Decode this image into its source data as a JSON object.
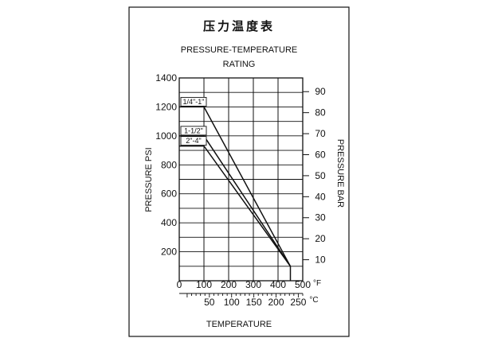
{
  "chart_data": {
    "type": "line",
    "title_cn": "压力温度表",
    "title_line1": "PRESSURE-TEMPERATURE",
    "title_line2": "RATING",
    "ylabel_left": "PRESSURE PSI",
    "ylabel_right": "PRESSURE BAR",
    "xlabel": "TEMPERATURE",
    "xlim": [
      0,
      500
    ],
    "ylim": [
      0,
      1400
    ],
    "y_ticks_left": [
      200,
      400,
      600,
      800,
      1000,
      1200,
      1400
    ],
    "y_ticks_right": [
      10,
      20,
      30,
      40,
      50,
      60,
      70,
      80,
      90
    ],
    "x_ticks_f": [
      0,
      100,
      200,
      300,
      400,
      500
    ],
    "x_unit_f": "°F",
    "x_ticks_c": [
      50,
      100,
      150,
      200,
      250
    ],
    "x_unit_c": "°C",
    "grid": true,
    "series": [
      {
        "name": "1/4\"-1\"",
        "x": [
          0,
          100,
          450
        ],
        "y": [
          1200,
          1200,
          100
        ]
      },
      {
        "name": "1-1/2\"",
        "x": [
          0,
          100,
          450
        ],
        "y": [
          1000,
          1000,
          100
        ]
      },
      {
        "name": "2\"-4\"",
        "x": [
          0,
          100,
          450
        ],
        "y": [
          930,
          930,
          100
        ]
      }
    ],
    "tail": {
      "x": [
        450,
        450
      ],
      "y": [
        100,
        0
      ]
    }
  }
}
